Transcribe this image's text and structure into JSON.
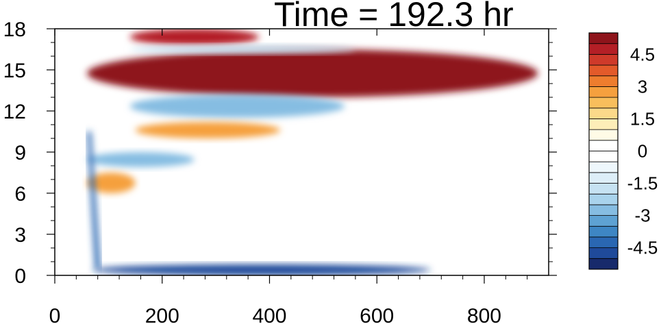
{
  "chart_data": {
    "type": "heatmap",
    "title": "Time = 192.3 hr",
    "xlabel": "",
    "ylabel": "",
    "xlim": [
      0,
      920
    ],
    "ylim": [
      0,
      18
    ],
    "x_ticks": [
      0,
      200,
      400,
      600,
      800
    ],
    "y_ticks": [
      0,
      3,
      6,
      9,
      12,
      15,
      18
    ],
    "grid": false,
    "colorbar": {
      "placement": "right",
      "levels": [
        -5.5,
        -5,
        -4.5,
        -4,
        -3.5,
        -3,
        -2.5,
        -2,
        -1.5,
        -1,
        -0.5,
        0,
        0.5,
        1,
        1.5,
        2,
        2.5,
        3,
        3.5,
        4,
        4.5,
        5,
        5.5
      ],
      "labels": [
        "4.5",
        "3",
        "1.5",
        "0",
        "-1.5",
        "-3",
        "-4.5"
      ],
      "label_values": [
        4.5,
        3,
        1.5,
        0,
        -1.5,
        -3,
        -4.5
      ],
      "colors": [
        "#172a6b",
        "#1f4a9a",
        "#2a67b2",
        "#3e86c4",
        "#5ea2d3",
        "#86bde2",
        "#a9d3ec",
        "#c6e2f2",
        "#ddeef8",
        "#eef7fc",
        "#ffffff",
        "#ffffff",
        "#fffbe6",
        "#fdeeb8",
        "#fbd98a",
        "#f8be5c",
        "#f5a03e",
        "#ee7d2e",
        "#e35a2a",
        "#cf3a2a",
        "#b41f26",
        "#8e141b"
      ]
    },
    "features": [
      {
        "name": "upper positive band",
        "x": [
          60,
          900
        ],
        "y": [
          13.0,
          16.5
        ],
        "value": 5.5
      },
      {
        "name": "top positive band",
        "x": [
          140,
          380
        ],
        "y": [
          16.8,
          18.0
        ],
        "value": 4.5
      },
      {
        "name": "negative band near 16.5",
        "x": [
          140,
          560
        ],
        "y": [
          16.2,
          16.8
        ],
        "value": -2.0
      },
      {
        "name": "negative band near 12.5",
        "x": [
          140,
          540
        ],
        "y": [
          11.5,
          13.2
        ],
        "value": -3.0
      },
      {
        "name": "positive band near 10.5",
        "x": [
          150,
          420
        ],
        "y": [
          10.0,
          11.2
        ],
        "value": 2.5
      },
      {
        "name": "negative band near 8.5",
        "x": [
          60,
          260
        ],
        "y": [
          7.9,
          9.0
        ],
        "value": -3.0
      },
      {
        "name": "positive band near 6.8",
        "x": [
          60,
          150
        ],
        "y": [
          6.0,
          7.5
        ],
        "value": 2.5
      },
      {
        "name": "surface negative band",
        "x": [
          70,
          700
        ],
        "y": [
          0.0,
          0.8
        ],
        "value": -5.0
      },
      {
        "name": "diagonal negative ridge",
        "x": [
          60,
          80
        ],
        "y": [
          0.5,
          10.5
        ],
        "value": -4.5
      }
    ]
  }
}
